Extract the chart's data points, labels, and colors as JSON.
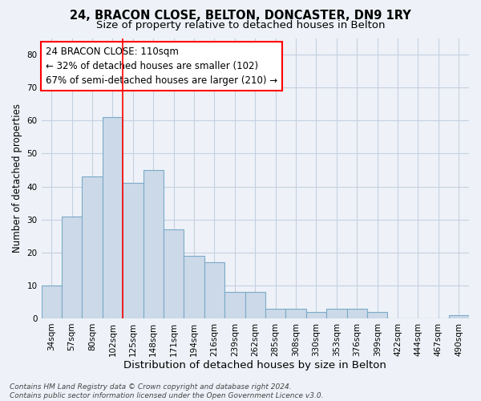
{
  "title_line1": "24, BRACON CLOSE, BELTON, DONCASTER, DN9 1RY",
  "title_line2": "Size of property relative to detached houses in Belton",
  "xlabel": "Distribution of detached houses by size in Belton",
  "ylabel": "Number of detached properties",
  "categories": [
    "34sqm",
    "57sqm",
    "80sqm",
    "102sqm",
    "125sqm",
    "148sqm",
    "171sqm",
    "194sqm",
    "216sqm",
    "239sqm",
    "262sqm",
    "285sqm",
    "308sqm",
    "330sqm",
    "353sqm",
    "376sqm",
    "399sqm",
    "422sqm",
    "444sqm",
    "467sqm",
    "490sqm"
  ],
  "values": [
    10,
    31,
    43,
    61,
    41,
    45,
    27,
    19,
    17,
    8,
    8,
    3,
    3,
    2,
    3,
    3,
    2,
    0,
    0,
    0,
    1
  ],
  "bar_color": "#ccd9e8",
  "bar_edge_color": "#7aaac8",
  "grid_color": "#c5cfe0",
  "background_color": "#eef2f8",
  "red_line_x": 3.5,
  "annotation_text": "24 BRACON CLOSE: 110sqm\n← 32% of detached houses are smaller (102)\n67% of semi-detached houses are larger (210) →",
  "annotation_box_color": "white",
  "annotation_box_edge_color": "red",
  "ylim": [
    0,
    85
  ],
  "yticks": [
    0,
    10,
    20,
    30,
    40,
    50,
    60,
    70,
    80
  ],
  "footnote": "Contains HM Land Registry data © Crown copyright and database right 2024.\nContains public sector information licensed under the Open Government Licence v3.0.",
  "title_fontsize": 10.5,
  "subtitle_fontsize": 9.5,
  "xlabel_fontsize": 9.5,
  "ylabel_fontsize": 8.5,
  "tick_fontsize": 7.5,
  "annotation_fontsize": 8.5,
  "footnote_fontsize": 6.5
}
